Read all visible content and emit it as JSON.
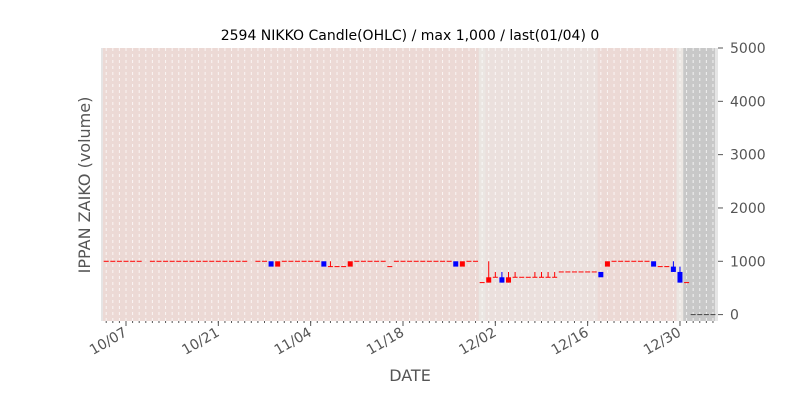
{
  "chart_data": {
    "type": "candlestick",
    "title": "2594 NIKKO Candle(OHLC) / max 1,000 / last(01/04) 0",
    "xlabel": "DATE",
    "ylabel": "IPPAN ZAIKO (volume)",
    "ylim": [
      -120,
      5000
    ],
    "y_ticks": [
      0,
      1000,
      2000,
      3000,
      4000,
      5000
    ],
    "y_axis_side": "right",
    "x_ticks": [
      "10/07",
      "10/21",
      "11/04",
      "11/18",
      "12/02",
      "12/16",
      "12/30"
    ],
    "x_start": "10/04",
    "x_end": "01/04",
    "grid": "vertical dashed daily",
    "colors": {
      "up": "#ff0000",
      "down": "#0000ff",
      "bg_pink": "#ecd9d5",
      "bg_light": "#ebe0dd",
      "bg_gap": "#ebe6e2",
      "bg_gray": "#c8c8c8",
      "bg_edge": "#e5e5e5"
    },
    "background_bands": [
      {
        "from": "10/03",
        "to": "10/04",
        "color": "bg_edge"
      },
      {
        "from": "10/04",
        "to": "11/30",
        "color": "bg_pink"
      },
      {
        "from": "11/30",
        "to": "12/01",
        "color": "bg_gap"
      },
      {
        "from": "12/01",
        "to": "12/18",
        "color": "bg_light"
      },
      {
        "from": "12/18",
        "to": "12/30",
        "color": "bg_pink"
      },
      {
        "from": "12/30",
        "to": "12/31",
        "color": "bg_gap"
      },
      {
        "from": "12/31",
        "to": "01/05",
        "color": "bg_gray"
      }
    ],
    "candles": [
      {
        "d": "10/04",
        "o": 1000,
        "h": 1000,
        "l": 1000,
        "c": 1000
      },
      {
        "d": "10/05",
        "o": 1000,
        "h": 1000,
        "l": 1000,
        "c": 1000
      },
      {
        "d": "10/06",
        "o": 1000,
        "h": 1000,
        "l": 1000,
        "c": 1000
      },
      {
        "d": "10/07",
        "o": 1000,
        "h": 1000,
        "l": 1000,
        "c": 1000
      },
      {
        "d": "10/08",
        "o": 1000,
        "h": 1000,
        "l": 1000,
        "c": 1000
      },
      {
        "d": "10/09",
        "o": 1000,
        "h": 1000,
        "l": 1000,
        "c": 1000
      },
      {
        "d": "10/11",
        "o": 1000,
        "h": 1000,
        "l": 1000,
        "c": 1000
      },
      {
        "d": "10/12",
        "o": 1000,
        "h": 1000,
        "l": 1000,
        "c": 1000
      },
      {
        "d": "10/13",
        "o": 1000,
        "h": 1000,
        "l": 1000,
        "c": 1000
      },
      {
        "d": "10/14",
        "o": 1000,
        "h": 1000,
        "l": 1000,
        "c": 1000
      },
      {
        "d": "10/15",
        "o": 1000,
        "h": 1000,
        "l": 1000,
        "c": 1000
      },
      {
        "d": "10/16",
        "o": 1000,
        "h": 1000,
        "l": 1000,
        "c": 1000
      },
      {
        "d": "10/17",
        "o": 1000,
        "h": 1000,
        "l": 1000,
        "c": 1000
      },
      {
        "d": "10/18",
        "o": 1000,
        "h": 1000,
        "l": 1000,
        "c": 1000
      },
      {
        "d": "10/19",
        "o": 1000,
        "h": 1000,
        "l": 1000,
        "c": 1000
      },
      {
        "d": "10/20",
        "o": 1000,
        "h": 1000,
        "l": 1000,
        "c": 1000
      },
      {
        "d": "10/21",
        "o": 1000,
        "h": 1000,
        "l": 1000,
        "c": 1000
      },
      {
        "d": "10/22",
        "o": 1000,
        "h": 1000,
        "l": 1000,
        "c": 1000
      },
      {
        "d": "10/23",
        "o": 1000,
        "h": 1000,
        "l": 1000,
        "c": 1000
      },
      {
        "d": "10/24",
        "o": 1000,
        "h": 1000,
        "l": 1000,
        "c": 1000
      },
      {
        "d": "10/25",
        "o": 1000,
        "h": 1000,
        "l": 1000,
        "c": 1000
      },
      {
        "d": "10/27",
        "o": 1000,
        "h": 1000,
        "l": 1000,
        "c": 1000
      },
      {
        "d": "10/28",
        "o": 1000,
        "h": 1000,
        "l": 1000,
        "c": 1000
      },
      {
        "d": "10/29",
        "o": 1000,
        "h": 1000,
        "l": 900,
        "c": 900
      },
      {
        "d": "10/30",
        "o": 900,
        "h": 1000,
        "l": 900,
        "c": 1000
      },
      {
        "d": "10/31",
        "o": 1000,
        "h": 1000,
        "l": 1000,
        "c": 1000
      },
      {
        "d": "11/01",
        "o": 1000,
        "h": 1000,
        "l": 1000,
        "c": 1000
      },
      {
        "d": "11/02",
        "o": 1000,
        "h": 1000,
        "l": 1000,
        "c": 1000
      },
      {
        "d": "11/03",
        "o": 1000,
        "h": 1000,
        "l": 1000,
        "c": 1000
      },
      {
        "d": "11/04",
        "o": 1000,
        "h": 1000,
        "l": 1000,
        "c": 1000
      },
      {
        "d": "11/05",
        "o": 1000,
        "h": 1000,
        "l": 1000,
        "c": 1000
      },
      {
        "d": "11/06",
        "o": 1000,
        "h": 1000,
        "l": 900,
        "c": 900
      },
      {
        "d": "11/07",
        "o": 900,
        "h": 1000,
        "l": 900,
        "c": 900
      },
      {
        "d": "11/08",
        "o": 900,
        "h": 900,
        "l": 900,
        "c": 900
      },
      {
        "d": "11/09",
        "o": 900,
        "h": 900,
        "l": 900,
        "c": 900
      },
      {
        "d": "11/10",
        "o": 900,
        "h": 1000,
        "l": 900,
        "c": 1000
      },
      {
        "d": "11/11",
        "o": 1000,
        "h": 1000,
        "l": 1000,
        "c": 1000
      },
      {
        "d": "11/12",
        "o": 1000,
        "h": 1000,
        "l": 1000,
        "c": 1000
      },
      {
        "d": "11/13",
        "o": 1000,
        "h": 1000,
        "l": 1000,
        "c": 1000
      },
      {
        "d": "11/14",
        "o": 1000,
        "h": 1000,
        "l": 1000,
        "c": 1000
      },
      {
        "d": "11/15",
        "o": 1000,
        "h": 1000,
        "l": 1000,
        "c": 1000
      },
      {
        "d": "11/16",
        "o": 900,
        "h": 900,
        "l": 900,
        "c": 900
      },
      {
        "d": "11/17",
        "o": 1000,
        "h": 1000,
        "l": 1000,
        "c": 1000
      },
      {
        "d": "11/18",
        "o": 1000,
        "h": 1000,
        "l": 1000,
        "c": 1000
      },
      {
        "d": "11/19",
        "o": 1000,
        "h": 1000,
        "l": 1000,
        "c": 1000
      },
      {
        "d": "11/20",
        "o": 1000,
        "h": 1000,
        "l": 1000,
        "c": 1000
      },
      {
        "d": "11/21",
        "o": 1000,
        "h": 1000,
        "l": 1000,
        "c": 1000
      },
      {
        "d": "11/22",
        "o": 1000,
        "h": 1000,
        "l": 1000,
        "c": 1000
      },
      {
        "d": "11/23",
        "o": 1000,
        "h": 1000,
        "l": 1000,
        "c": 1000
      },
      {
        "d": "11/24",
        "o": 1000,
        "h": 1000,
        "l": 1000,
        "c": 1000
      },
      {
        "d": "11/25",
        "o": 1000,
        "h": 1000,
        "l": 1000,
        "c": 1000
      },
      {
        "d": "11/26",
        "o": 1000,
        "h": 1000,
        "l": 900,
        "c": 900
      },
      {
        "d": "11/27",
        "o": 900,
        "h": 1000,
        "l": 900,
        "c": 1000
      },
      {
        "d": "11/28",
        "o": 1000,
        "h": 1000,
        "l": 1000,
        "c": 1000
      },
      {
        "d": "11/29",
        "o": 1000,
        "h": 1000,
        "l": 1000,
        "c": 1000
      },
      {
        "d": "11/30",
        "o": 600,
        "h": 600,
        "l": 600,
        "c": 600
      },
      {
        "d": "12/01",
        "o": 600,
        "h": 1000,
        "l": 600,
        "c": 700
      },
      {
        "d": "12/02",
        "o": 700,
        "h": 800,
        "l": 700,
        "c": 700
      },
      {
        "d": "12/03",
        "o": 700,
        "h": 800,
        "l": 600,
        "c": 600
      },
      {
        "d": "12/04",
        "o": 600,
        "h": 800,
        "l": 600,
        "c": 700
      },
      {
        "d": "12/05",
        "o": 700,
        "h": 800,
        "l": 700,
        "c": 700
      },
      {
        "d": "12/06",
        "o": 700,
        "h": 700,
        "l": 700,
        "c": 700
      },
      {
        "d": "12/07",
        "o": 700,
        "h": 700,
        "l": 700,
        "c": 700
      },
      {
        "d": "12/08",
        "o": 700,
        "h": 800,
        "l": 700,
        "c": 700
      },
      {
        "d": "12/09",
        "o": 700,
        "h": 800,
        "l": 700,
        "c": 700
      },
      {
        "d": "12/10",
        "o": 700,
        "h": 800,
        "l": 700,
        "c": 700
      },
      {
        "d": "12/11",
        "o": 700,
        "h": 800,
        "l": 700,
        "c": 700
      },
      {
        "d": "12/12",
        "o": 800,
        "h": 800,
        "l": 800,
        "c": 800
      },
      {
        "d": "12/13",
        "o": 800,
        "h": 800,
        "l": 800,
        "c": 800
      },
      {
        "d": "12/14",
        "o": 800,
        "h": 800,
        "l": 800,
        "c": 800
      },
      {
        "d": "12/15",
        "o": 800,
        "h": 800,
        "l": 800,
        "c": 800
      },
      {
        "d": "12/16",
        "o": 800,
        "h": 800,
        "l": 800,
        "c": 800
      },
      {
        "d": "12/17",
        "o": 800,
        "h": 800,
        "l": 800,
        "c": 800
      },
      {
        "d": "12/18",
        "o": 800,
        "h": 800,
        "l": 700,
        "c": 700
      },
      {
        "d": "12/19",
        "o": 900,
        "h": 1000,
        "l": 900,
        "c": 1000
      },
      {
        "d": "12/20",
        "o": 1000,
        "h": 1000,
        "l": 1000,
        "c": 1000
      },
      {
        "d": "12/21",
        "o": 1000,
        "h": 1000,
        "l": 1000,
        "c": 1000
      },
      {
        "d": "12/22",
        "o": 1000,
        "h": 1000,
        "l": 1000,
        "c": 1000
      },
      {
        "d": "12/23",
        "o": 1000,
        "h": 1000,
        "l": 1000,
        "c": 1000
      },
      {
        "d": "12/24",
        "o": 1000,
        "h": 1000,
        "l": 1000,
        "c": 1000
      },
      {
        "d": "12/25",
        "o": 1000,
        "h": 1000,
        "l": 1000,
        "c": 1000
      },
      {
        "d": "12/26",
        "o": 1000,
        "h": 1000,
        "l": 900,
        "c": 900
      },
      {
        "d": "12/27",
        "o": 900,
        "h": 900,
        "l": 900,
        "c": 900
      },
      {
        "d": "12/28",
        "o": 900,
        "h": 900,
        "l": 900,
        "c": 900
      },
      {
        "d": "12/29",
        "o": 900,
        "h": 1000,
        "l": 800,
        "c": 800
      },
      {
        "d": "12/30",
        "o": 800,
        "h": 900,
        "l": 600,
        "c": 600
      },
      {
        "d": "12/31",
        "o": 600,
        "h": 600,
        "l": 600,
        "c": 600
      },
      {
        "d": "01/01",
        "o": 0,
        "h": 0,
        "l": 0,
        "c": 0
      },
      {
        "d": "01/02",
        "o": 0,
        "h": 0,
        "l": 0,
        "c": 0
      },
      {
        "d": "01/03",
        "o": 0,
        "h": 0,
        "l": 0,
        "c": 0
      },
      {
        "d": "01/04",
        "o": 0,
        "h": 0,
        "l": 0,
        "c": 0
      }
    ]
  }
}
